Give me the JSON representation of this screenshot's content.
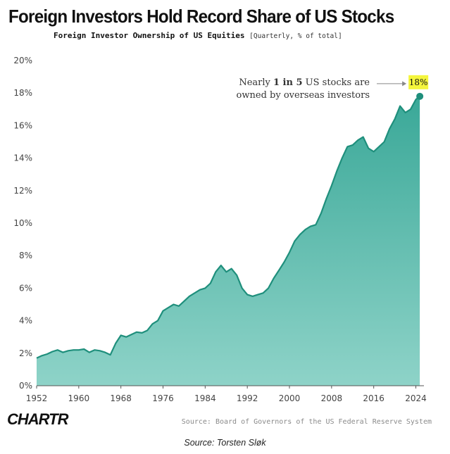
{
  "chart_data": {
    "type": "area",
    "title": "Foreign Investors Hold Record Share of  US Stocks",
    "subtitle": "Foreign Investor Ownership of US Equities",
    "subtitle_note": "[Quarterly, % of total]",
    "xlabel": "",
    "ylabel": "",
    "x_ticks": [
      "1952",
      "1960",
      "1968",
      "1976",
      "1984",
      "1992",
      "2000",
      "2008",
      "2016",
      "2024"
    ],
    "y_ticks": [
      "0%",
      "2%",
      "4%",
      "6%",
      "8%",
      "10%",
      "12%",
      "14%",
      "16%",
      "18%",
      "20%"
    ],
    "xlim": [
      1952,
      2025
    ],
    "ylim": [
      0,
      20
    ],
    "grid": false,
    "color": "#2a9d8a",
    "series": [
      {
        "x": [
          1952,
          1953,
          1954,
          1955,
          1956,
          1957,
          1958,
          1959,
          1960,
          1961,
          1962,
          1963,
          1964,
          1965,
          1966,
          1967,
          1968,
          1969,
          1970,
          1971,
          1972,
          1973,
          1974,
          1975,
          1976,
          1977,
          1978,
          1979,
          1980,
          1981,
          1982,
          1983,
          1984,
          1985,
          1986,
          1987,
          1988,
          1989,
          1990,
          1991,
          1992,
          1993,
          1994,
          1995,
          1996,
          1997,
          1998,
          1999,
          2000,
          2001,
          2002,
          2003,
          2004,
          2005,
          2006,
          2007,
          2008,
          2009,
          2010,
          2011,
          2012,
          2013,
          2014,
          2015,
          2016,
          2017,
          2018,
          2019,
          2020,
          2021,
          2022,
          2023,
          2024,
          2024.75
        ],
        "values": [
          1.7,
          1.85,
          1.95,
          2.1,
          2.2,
          2.05,
          2.15,
          2.2,
          2.2,
          2.25,
          2.05,
          2.2,
          2.15,
          2.05,
          1.9,
          2.6,
          3.1,
          3.0,
          3.15,
          3.3,
          3.25,
          3.4,
          3.8,
          4.0,
          4.6,
          4.8,
          5.0,
          4.9,
          5.2,
          5.5,
          5.7,
          5.9,
          6.0,
          6.3,
          7.0,
          7.4,
          7.0,
          7.2,
          6.8,
          6.0,
          5.6,
          5.5,
          5.6,
          5.7,
          6.0,
          6.6,
          7.1,
          7.6,
          8.2,
          8.9,
          9.3,
          9.6,
          9.8,
          9.9,
          10.6,
          11.5,
          12.3,
          13.2,
          14.0,
          14.7,
          14.8,
          15.1,
          15.3,
          14.6,
          14.4,
          14.7,
          15.0,
          15.8,
          16.4,
          17.2,
          16.8,
          17.0,
          17.6,
          17.8
        ]
      }
    ],
    "annotation": {
      "line1_pre": "Nearly ",
      "line1_bold": "1 in 5",
      "line1_post": " US stocks are",
      "line2": "owned by overseas investors",
      "badge": "18%"
    },
    "source": "Source: Board of Governors of the US Federal Reserve System",
    "logo": "CHARTR",
    "credit": "Source: Torsten Sløk"
  }
}
